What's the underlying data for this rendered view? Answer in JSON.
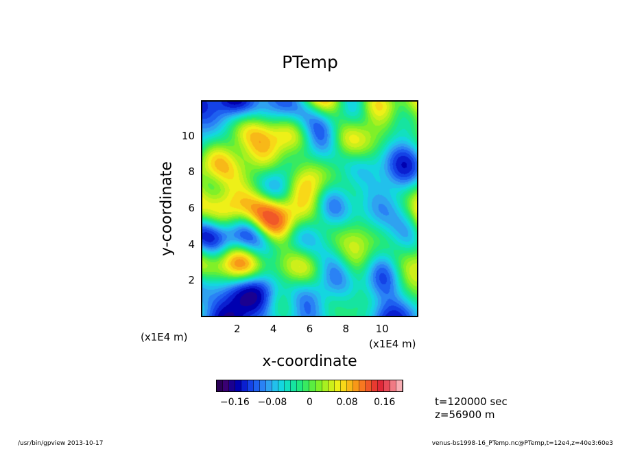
{
  "chart_data": {
    "type": "heatmap",
    "title": "PTemp",
    "xlabel": "x-coordinate",
    "ylabel": "y-coordinate",
    "x_unit": "(x1E4 m)",
    "y_unit": "(x1E4 m)",
    "xlim": [
      0,
      12
    ],
    "ylim": [
      0,
      12
    ],
    "x_ticks": [
      "2",
      "4",
      "6",
      "8",
      "10"
    ],
    "y_ticks": [
      "2",
      "4",
      "6",
      "8",
      "10"
    ],
    "colorbar": {
      "range": [
        -0.2,
        0.2
      ],
      "tick_labels": [
        "−0.16",
        "−0.08",
        "0",
        "0.08",
        "0.16"
      ],
      "tick_values": [
        -0.16,
        -0.08,
        0,
        0.08,
        0.16
      ],
      "colors": [
        "#2b0057",
        "#3a0073",
        "#1a0090",
        "#0000b0",
        "#0a1fd0",
        "#1442e6",
        "#1e60f0",
        "#2a82f5",
        "#2fa2f0",
        "#22c0ec",
        "#14d6e0",
        "#12e0c0",
        "#16e4a0",
        "#20e880",
        "#38ea60",
        "#5aee40",
        "#80f028",
        "#a8f020",
        "#cdef1a",
        "#eef018",
        "#f8d818",
        "#f8b818",
        "#f89818",
        "#f87820",
        "#f05828",
        "#e83a30",
        "#e02838",
        "#e84a58",
        "#f07a84",
        "#f8aeb4"
      ]
    }
  },
  "annotations": {
    "time": "t=120000 sec",
    "height": "z=56900 m"
  },
  "footer": {
    "left": "/usr/bin/gpview   2013-10-17",
    "right": "venus-bs1998-16_PTemp.nc@PTemp,t=12e4,z=40e3:60e3"
  }
}
